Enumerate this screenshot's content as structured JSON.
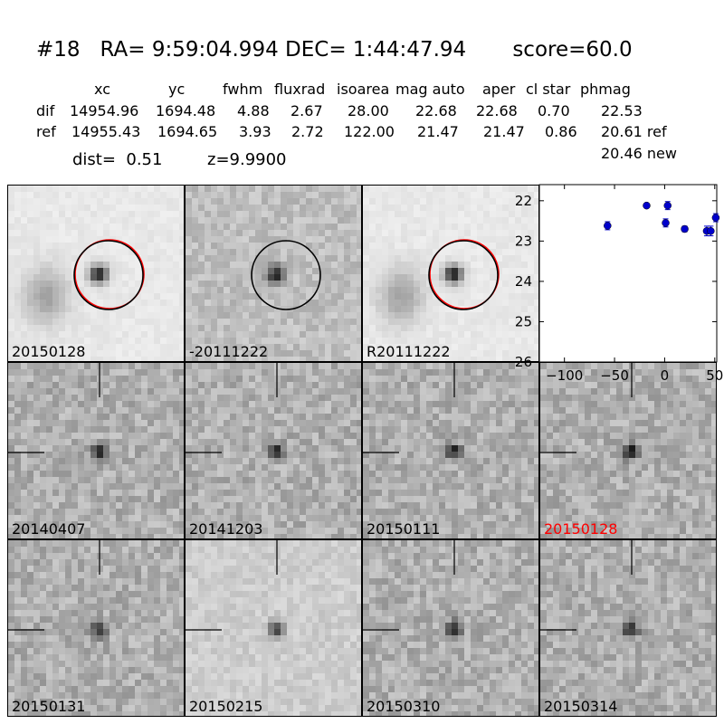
{
  "header": {
    "title": "#18   RA= 9:59:04.994 DEC= 1:44:47.94       score=60.0",
    "columns": [
      "xc",
      "yc",
      "fwhm",
      "fluxrad",
      "isoarea",
      "mag auto",
      "aper",
      "cl star",
      "phmag"
    ],
    "rows": [
      {
        "label": "dif",
        "values": [
          "14954.96",
          "1694.48",
          "4.88",
          "2.67",
          "28.00",
          "22.68",
          "22.68",
          "0.70",
          "22.53"
        ]
      },
      {
        "label": "ref",
        "values": [
          "14955.43",
          "1694.65",
          "3.93",
          "2.72",
          "122.00",
          "21.47",
          "21.47",
          "0.86",
          "20.61 ref"
        ]
      }
    ],
    "extra_phmag": "20.46 new",
    "dist_text": "dist=  0.51",
    "z_text": "z=9.9900"
  },
  "panels_top": [
    {
      "label": "20150128",
      "circles": [
        "red",
        "black"
      ],
      "host": true
    },
    {
      "label": "-20111222",
      "circles": [
        "black"
      ],
      "host": false
    },
    {
      "label": "R20111222",
      "circles": [
        "red",
        "black"
      ],
      "host": true
    }
  ],
  "panels_grid": [
    {
      "label": "20140407",
      "highlight": false
    },
    {
      "label": "20141203",
      "highlight": false
    },
    {
      "label": "20150111",
      "highlight": false
    },
    {
      "label": "20150128",
      "highlight": true
    },
    {
      "label": "20150131",
      "highlight": false
    },
    {
      "label": "20150215",
      "highlight": false
    },
    {
      "label": "20150310",
      "highlight": false
    },
    {
      "label": "20150314",
      "highlight": false
    }
  ],
  "colors": {
    "circle_red": "#ff0000",
    "circle_black": "#000000",
    "point": "#0000cc",
    "highlight_label": "#ff0000"
  },
  "chart_data": {
    "type": "scatter",
    "title": "",
    "xlabel": "",
    "ylabel": "",
    "xlim": [
      -125,
      52
    ],
    "ylim": [
      26,
      21.6
    ],
    "y_inverted": true,
    "x_ticks": [
      -100,
      -50,
      0,
      50
    ],
    "y_ticks": [
      22,
      23,
      24,
      25,
      26
    ],
    "series": [
      {
        "x": [
          -57,
          -18,
          1,
          3,
          20,
          42,
          46,
          51
        ],
        "y": [
          22.62,
          22.12,
          22.55,
          22.12,
          22.7,
          22.75,
          22.75,
          22.42
        ],
        "err": [
          0.1,
          0.05,
          0.1,
          0.1,
          0.07,
          0.12,
          0.12,
          0.1
        ]
      }
    ]
  }
}
